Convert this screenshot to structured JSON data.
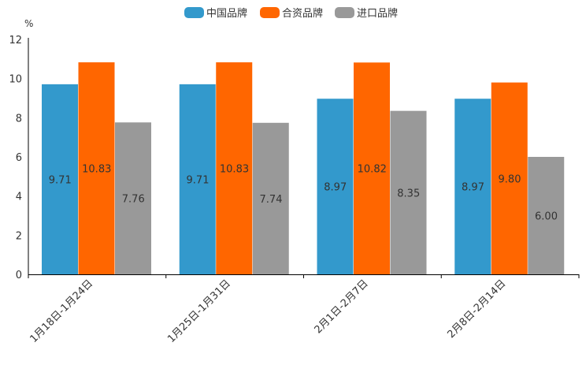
{
  "chart_data": {
    "type": "bar",
    "unit": "%",
    "categories": [
      "1月18日-1月24日",
      "1月25日-1月31日",
      "2月1日-2月7日",
      "2月8日-2月14日"
    ],
    "series": [
      {
        "name": "中国品牌",
        "color": "#3399cc",
        "values": [
          9.71,
          9.71,
          8.97,
          8.97
        ],
        "labels": [
          "9.71",
          "9.71",
          "8.97",
          "8.97"
        ]
      },
      {
        "name": "合资品牌",
        "color": "#ff6600",
        "values": [
          10.83,
          10.83,
          10.82,
          9.8
        ],
        "labels": [
          "10.83",
          "10.83",
          "10.82",
          "9.80"
        ]
      },
      {
        "name": "进口品牌",
        "color": "#999999",
        "values": [
          7.76,
          7.74,
          8.35,
          6.0
        ],
        "labels": [
          "7.76",
          "7.74",
          "8.35",
          "6.00"
        ]
      }
    ],
    "ylim": [
      0,
      12
    ],
    "yticks": [
      "0",
      "2",
      "4",
      "6",
      "8",
      "10",
      "12"
    ],
    "legend_position": "top-center",
    "grid": false
  }
}
